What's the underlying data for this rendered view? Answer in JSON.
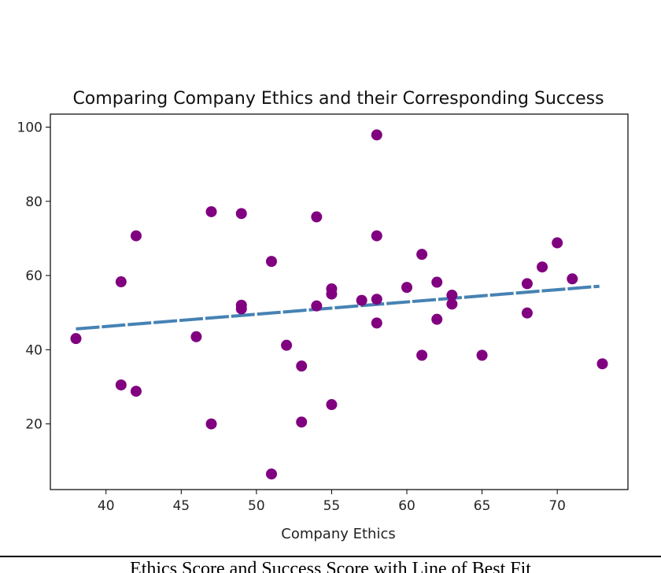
{
  "chart_data": {
    "type": "scatter",
    "title": "Comparing Company Ethics and their Corresponding Success",
    "xlabel": "Company Ethics",
    "ylabel": "",
    "xlim": [
      36.3,
      74.7
    ],
    "ylim": [
      2.3,
      103.5
    ],
    "xticks": [
      40,
      45,
      50,
      55,
      60,
      65,
      70
    ],
    "yticks": [
      20,
      40,
      60,
      80,
      100
    ],
    "grid": false,
    "point_color": "#800080",
    "line_color": "#4682b4",
    "points": [
      {
        "x": 38,
        "y": 43
      },
      {
        "x": 41,
        "y": 58.3
      },
      {
        "x": 41,
        "y": 30.5
      },
      {
        "x": 42,
        "y": 70.7
      },
      {
        "x": 42,
        "y": 28.8
      },
      {
        "x": 46,
        "y": 43.5
      },
      {
        "x": 47,
        "y": 77.2
      },
      {
        "x": 47,
        "y": 20
      },
      {
        "x": 49,
        "y": 76.7
      },
      {
        "x": 49,
        "y": 52
      },
      {
        "x": 49,
        "y": 51
      },
      {
        "x": 51,
        "y": 63.8
      },
      {
        "x": 51,
        "y": 6.5
      },
      {
        "x": 52,
        "y": 41.2
      },
      {
        "x": 53,
        "y": 35.6
      },
      {
        "x": 53,
        "y": 20.5
      },
      {
        "x": 54,
        "y": 75.8
      },
      {
        "x": 54,
        "y": 51.8
      },
      {
        "x": 55,
        "y": 56.4
      },
      {
        "x": 55,
        "y": 55
      },
      {
        "x": 55,
        "y": 25.2
      },
      {
        "x": 57,
        "y": 53.3
      },
      {
        "x": 58,
        "y": 97.9
      },
      {
        "x": 58,
        "y": 70.7
      },
      {
        "x": 58,
        "y": 53.6
      },
      {
        "x": 58,
        "y": 47.2
      },
      {
        "x": 60,
        "y": 56.8
      },
      {
        "x": 61,
        "y": 65.7
      },
      {
        "x": 61,
        "y": 38.5
      },
      {
        "x": 62,
        "y": 58.2
      },
      {
        "x": 62,
        "y": 48.2
      },
      {
        "x": 63,
        "y": 54.7
      },
      {
        "x": 63,
        "y": 52.3
      },
      {
        "x": 65,
        "y": 38.5
      },
      {
        "x": 68,
        "y": 57.8
      },
      {
        "x": 68,
        "y": 49.9
      },
      {
        "x": 69,
        "y": 62.3
      },
      {
        "x": 70,
        "y": 68.8
      },
      {
        "x": 71,
        "y": 59.1
      },
      {
        "x": 73,
        "y": 36.2
      }
    ],
    "regression_line": {
      "x": [
        38,
        72.8
      ],
      "y": [
        45.6,
        57.1
      ]
    }
  },
  "caption": "Ethics Score and Success Score with Line of Best Fit"
}
